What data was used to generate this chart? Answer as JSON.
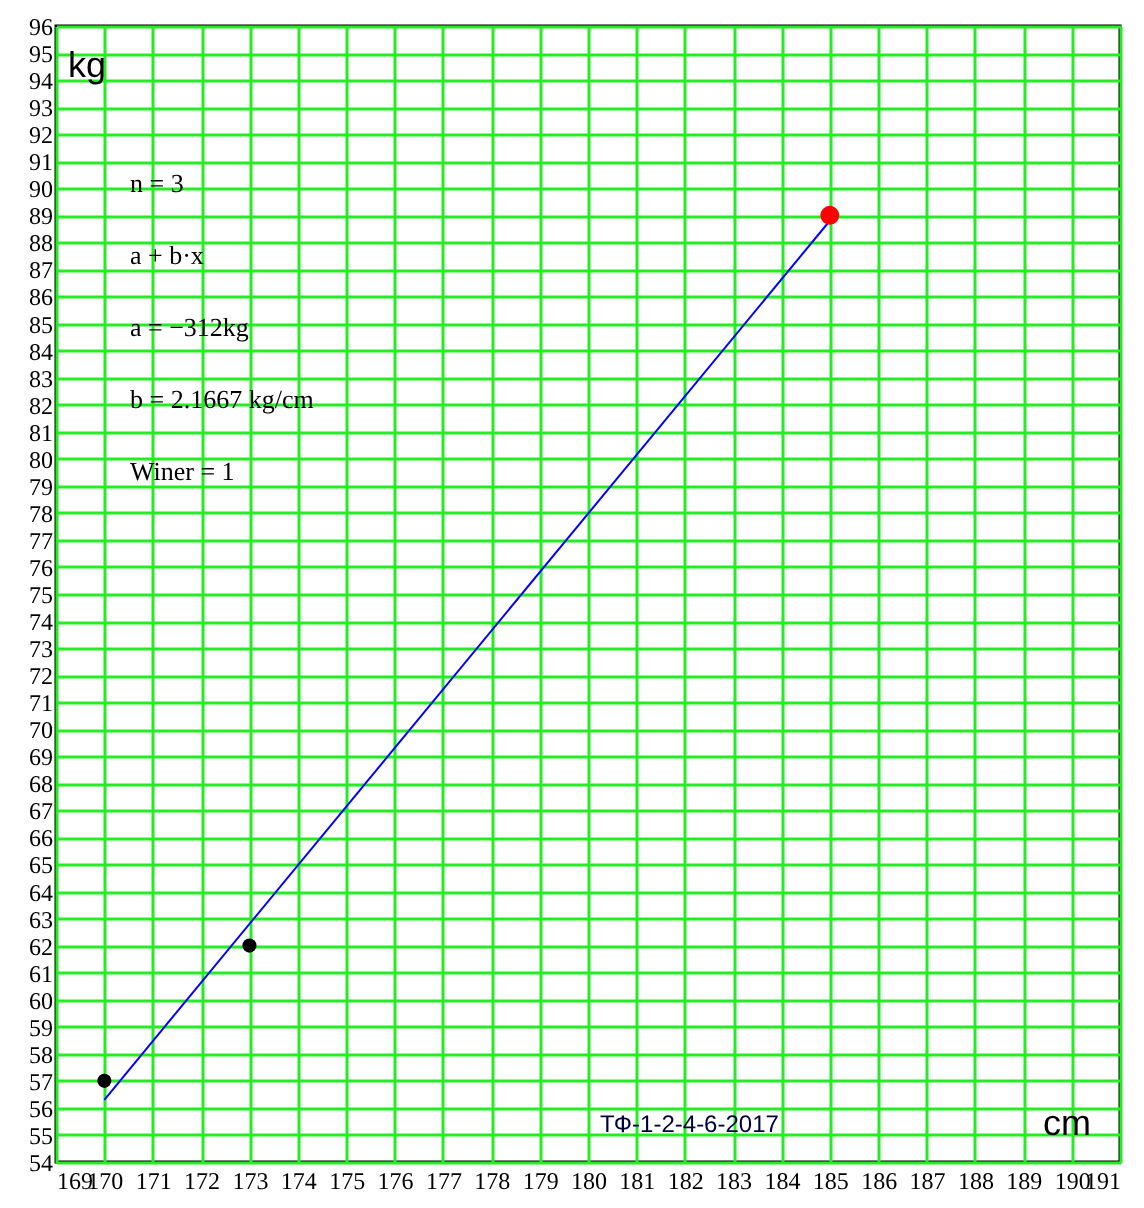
{
  "chart_data": {
    "type": "scatter",
    "xlabel": "cm",
    "ylabel": "kg",
    "xlim": [
      169,
      191
    ],
    "xticks": [
      169,
      170,
      171,
      172,
      173,
      174,
      175,
      176,
      177,
      178,
      179,
      180,
      181,
      182,
      183,
      184,
      185,
      186,
      187,
      188,
      189,
      190,
      191
    ],
    "ylim": [
      54,
      96
    ],
    "yticks": [
      54,
      55,
      56,
      57,
      58,
      59,
      60,
      61,
      62,
      63,
      64,
      65,
      66,
      67,
      68,
      69,
      70,
      71,
      72,
      73,
      74,
      75,
      76,
      77,
      78,
      79,
      80,
      81,
      82,
      83,
      84,
      85,
      86,
      87,
      88,
      89,
      90,
      91,
      92,
      93,
      94,
      95,
      96
    ],
    "grid": true,
    "marker": "circle",
    "series": [
      {
        "type": "line",
        "marker": "none",
        "color": "#0000ff",
        "x": [
          170,
          185
        ],
        "values": [
          56.3,
          88.8
        ]
      },
      {
        "type": "scatter",
        "color": "#000000",
        "x": [
          170,
          173
        ],
        "values": [
          57,
          62
        ]
      },
      {
        "type": "scatter",
        "color": "#ff0000",
        "x": [
          185
        ],
        "values": [
          89
        ]
      }
    ],
    "annotations": [
      "n = 3",
      "a + b·x",
      "a = −312kg",
      "b = 2.1667 kg/cm",
      "Winer = 1",
      "ТФ-1-2-4-6-2017"
    ]
  }
}
